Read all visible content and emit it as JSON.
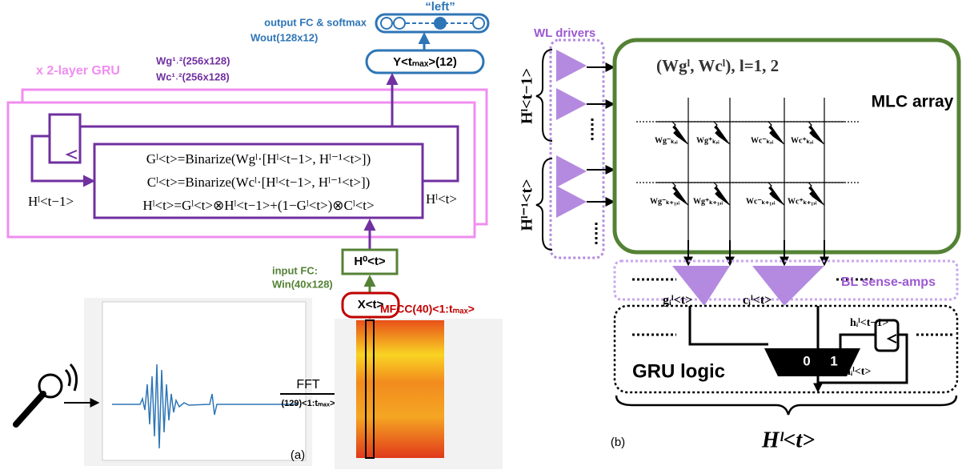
{
  "panel_a": {
    "output_word": "“left”",
    "output_fc": "output FC & softmax",
    "output_weights": "Wout(128x12)",
    "output_node": "Y<tₘₐₓ>(12)",
    "gru_layers": "x 2-layer GRU",
    "gate_weights": "Wg¹˒²(256x128)",
    "candidate_weights": "Wc¹˒²(256x128)",
    "equations": [
      "Gˡ<t>=Binarize(Wgˡ·[Hˡ<t−1>, Hˡ⁻¹<t>])",
      "Cˡ<t>=Binarize(Wcˡ·[Hˡ<t−1>, Hˡ⁻¹<t>])",
      "Hˡ<t>=Gˡ<t>⊗Hˡ<t−1>+(1−Gˡ<t>)⊗Cˡ<t>"
    ],
    "prev_state": "Hˡ<t−1>",
    "new_state": "Hˡ<t>",
    "hidden0": "H⁰<t>",
    "input_fc": "input FC:",
    "input_weights": "Win(40x128)",
    "input_node": "X<t>",
    "mfcc": "MFCC(40)<1:tₘₐₓ>",
    "fft": "FFT",
    "fft_size": "(129)<1:tₘₐₓ>",
    "label": "(a)"
  },
  "panel_b": {
    "wl_drivers": "WL drivers",
    "weights": "(Wgˡ, Wcˡ), l=1, 2",
    "mlc_array": "MLC array",
    "input_prev": "Hˡ<t−1>",
    "input_lower": "Hˡ⁻¹<t>",
    "cells": [
      "Wg⁻ₖ,ᵢ",
      "Wg⁺ₖ,ᵢ",
      "Wc⁻ₖ,ᵢ",
      "Wc⁺ₖ,ᵢ",
      "Wg⁻ₖ₊₁,ᵢ",
      "Wg⁺ₖ₊₁,ᵢ",
      "Wc⁻ₖ₊₁,ᵢ",
      "Wc⁺ₖ₊₁,ᵢ"
    ],
    "gate_out": "gᵢˡ<t>",
    "cand_out": "cᵢˡ<t>",
    "sense_amps": "BL sense-amps",
    "h_prev": "hᵢˡ<t−1>",
    "h_new": "hᵢˡ<t>",
    "mux0": "0",
    "mux1": "1",
    "gru_logic": "GRU logic",
    "output": "Hˡ<t>",
    "label": "(b)"
  }
}
